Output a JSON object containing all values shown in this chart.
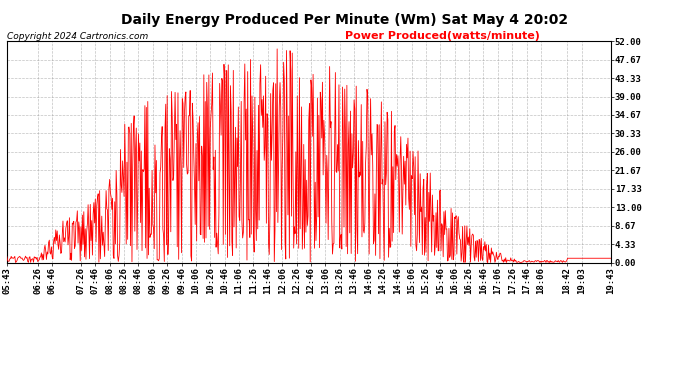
{
  "title": "Daily Energy Produced Per Minute (Wm) Sat May 4 20:02",
  "copyright": "Copyright 2024 Cartronics.com",
  "legend_label": "Power Produced(watts/minute)",
  "ylabel_color": "#ff0000",
  "copyright_color": "#000000",
  "line_color": "#ff0000",
  "background_color": "#ffffff",
  "grid_color": "#999999",
  "ylim": [
    0,
    52
  ],
  "yticks": [
    0.0,
    4.33,
    8.67,
    13.0,
    17.33,
    21.67,
    26.0,
    30.33,
    34.67,
    39.0,
    43.33,
    47.67,
    52.0
  ],
  "ytick_labels": [
    "0.00",
    "4.33",
    "8.67",
    "13.00",
    "17.33",
    "21.67",
    "26.00",
    "30.33",
    "34.67",
    "39.00",
    "43.33",
    "47.67",
    "52.00"
  ],
  "x_start_min": 343,
  "x_end_min": 1183,
  "xtick_labels": [
    "05:43",
    "06:26",
    "06:46",
    "07:26",
    "07:46",
    "08:06",
    "08:26",
    "08:46",
    "09:06",
    "09:26",
    "09:46",
    "10:06",
    "10:26",
    "10:46",
    "11:06",
    "11:26",
    "11:46",
    "12:06",
    "12:26",
    "12:46",
    "13:06",
    "13:26",
    "13:46",
    "14:06",
    "14:26",
    "14:46",
    "15:06",
    "15:26",
    "15:46",
    "16:06",
    "16:26",
    "16:46",
    "17:06",
    "17:26",
    "17:46",
    "18:06",
    "18:42",
    "19:03",
    "19:43"
  ],
  "title_fontsize": 10,
  "tick_fontsize": 6.5,
  "copyright_fontsize": 6.5,
  "legend_fontsize": 8
}
